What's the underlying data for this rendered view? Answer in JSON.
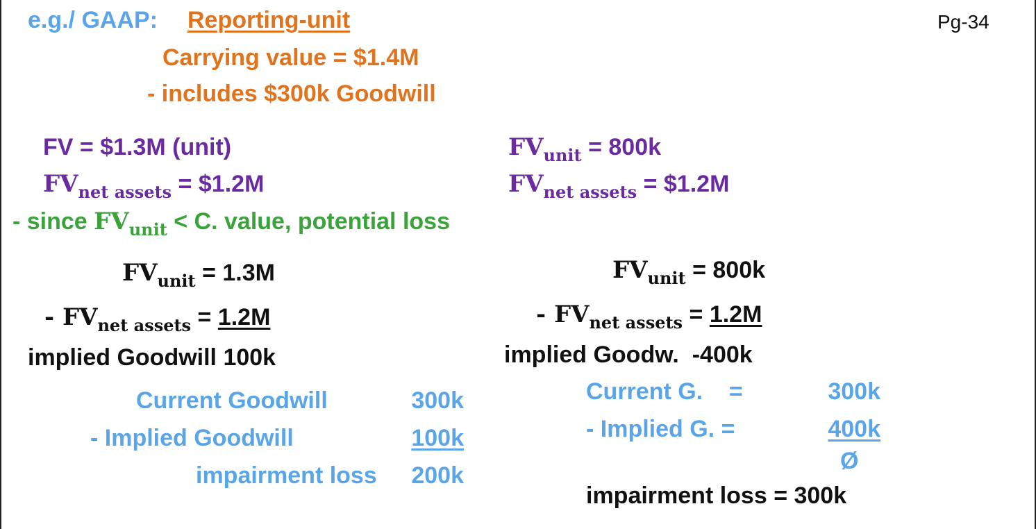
{
  "colors": {
    "blue": "#5aa5e8",
    "orange": "#e0731e",
    "purple": "#6a2aa0",
    "green": "#3aa43a",
    "black": "#111111"
  },
  "header": {
    "eg_label": "e.g./ GAAP:",
    "topic": "Reporting-unit",
    "page_number": "Pg-34"
  },
  "carrying": {
    "line1": "Carrying value = $1.4M",
    "line2": "- includes $300k Goodwill"
  },
  "left_case": {
    "fv_line": "FV = $1.3M (unit)",
    "fvna_prefix": "FV",
    "fvna_sub": "net assets",
    "fvna_value": " = $1.2M"
  },
  "right_case": {
    "fvu_prefix": "FV",
    "fvu_sub": "unit",
    "fvu_value": " = 800k",
    "fvna_prefix": "FV",
    "fvna_sub": "net assets",
    "fvna_value": " = $1.2M"
  },
  "since_line": {
    "prefix": "- since ",
    "fv": "FV",
    "sub": "unit",
    "rest": " < C. value, potential loss"
  },
  "left_calc": {
    "line1_fv": "FV",
    "line1_sub": "unit",
    "line1_value": " = 1.3M",
    "line2_prefix": "- FV",
    "line2_sub": "net assets",
    "line2_eq": " = ",
    "line2_value": "1.2M",
    "implied": "implied Goodwill 100k",
    "current_label": "Current Goodwill",
    "current_value": "300k",
    "minus_label": "- Implied Goodwill",
    "minus_value": "100k",
    "loss_label": "impairment loss",
    "loss_value": "200k"
  },
  "right_calc": {
    "line1_fv": "FV",
    "line1_sub": "unit",
    "line1_value": " = 800k",
    "line2_prefix": "- FV",
    "line2_sub": "net assets",
    "line2_eq": " = ",
    "line2_value": "1.2M",
    "implied": "implied Goodw.  -400k",
    "current_label": "Current G.    =",
    "current_value": "300k",
    "minus_label": "- Implied G. =",
    "minus_value": "400k",
    "zero": "Ø",
    "loss": "impairment loss = 300k"
  }
}
